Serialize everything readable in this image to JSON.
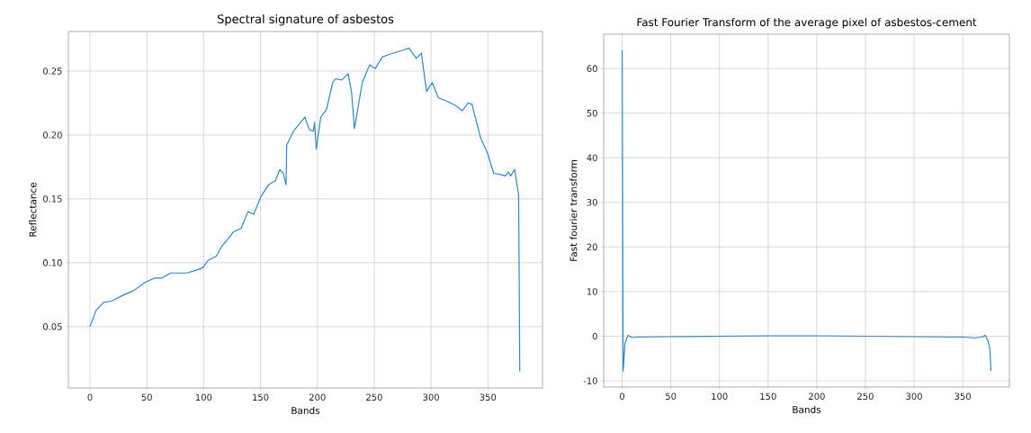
{
  "chart_data": [
    {
      "type": "line",
      "title": "Spectral signature of asbestos",
      "xlabel": "Bands",
      "ylabel": "Reflectance",
      "xlim": [
        -19,
        398
      ],
      "ylim": [
        0.002,
        0.281
      ],
      "xticks": [
        0,
        50,
        100,
        150,
        200,
        250,
        300,
        350
      ],
      "yticks": [
        0.05,
        {
          "value": 0.1,
          "label": "0.10"
        },
        0.15,
        {
          "value": 0.2,
          "label": "0.20"
        },
        0.25
      ],
      "grid": true,
      "series": [
        {
          "color": "#2e86d0",
          "x": [
            0,
            5.5,
            12,
            19,
            30,
            38,
            49,
            57,
            63,
            71,
            85,
            93,
            99,
            104,
            111,
            116,
            120,
            126,
            133,
            139,
            144,
            150.5,
            157,
            163,
            167,
            170,
            172.5,
            173,
            179,
            189,
            193,
            196.5,
            197.5,
            199,
            203,
            208,
            213.5,
            216,
            221.5,
            227,
            230,
            232.6,
            239.5,
            246,
            251,
            257,
            263,
            274,
            280.5,
            287,
            291.5,
            296,
            301,
            306.5,
            315,
            321.5,
            327.5,
            332.5,
            336,
            343.5,
            350,
            355,
            361,
            365.5,
            368,
            370,
            373.5,
            377,
            378
          ],
          "values": [
            0.05,
            0.063,
            0.069,
            0.07,
            0.075,
            0.078,
            0.085,
            0.088,
            0.088,
            0.092,
            0.092,
            0.094,
            0.096,
            0.102,
            0.105,
            0.113,
            0.117,
            0.124,
            0.127,
            0.14,
            0.138,
            0.152,
            0.161,
            0.164,
            0.173,
            0.17,
            0.161,
            0.192,
            0.203,
            0.214,
            0.204,
            0.203,
            0.21,
            0.189,
            0.214,
            0.22,
            0.241,
            0.244,
            0.243,
            0.248,
            0.234,
            0.205,
            0.241,
            0.255,
            0.252,
            0.261,
            0.263,
            0.266,
            0.268,
            0.26,
            0.264,
            0.234,
            0.241,
            0.229,
            0.226,
            0.223,
            0.219,
            0.225,
            0.224,
            0.198,
            0.185,
            0.17,
            0.169,
            0.168,
            0.171,
            0.168,
            0.173,
            0.153,
            0.015
          ]
        }
      ]
    },
    {
      "type": "line",
      "title": "Fast Fourier Transform of the average pixel of asbestos-cement",
      "xlabel": "Bands",
      "ylabel": "Fast fourier transform",
      "xlim": [
        -19,
        398
      ],
      "ylim": [
        -11.4,
        67.7
      ],
      "xticks": [
        0,
        50,
        100,
        150,
        200,
        250,
        300,
        350
      ],
      "yticks": [
        -10,
        0,
        10,
        20,
        30,
        40,
        50,
        60
      ],
      "grid": true,
      "series": [
        {
          "color": "#2e86d0",
          "x": [
            0,
            1,
            3,
            6,
            10,
            15,
            50,
            100,
            150,
            200,
            250,
            300,
            350,
            362,
            370,
            373,
            376,
            378,
            379
          ],
          "values": [
            64.1,
            -7.8,
            -1.5,
            0.2,
            -0.3,
            -0.2,
            -0.1,
            0,
            0.1,
            0.1,
            0,
            -0.1,
            -0.2,
            -0.4,
            -0.2,
            0.2,
            -1,
            -3,
            -7.8
          ]
        }
      ]
    }
  ]
}
